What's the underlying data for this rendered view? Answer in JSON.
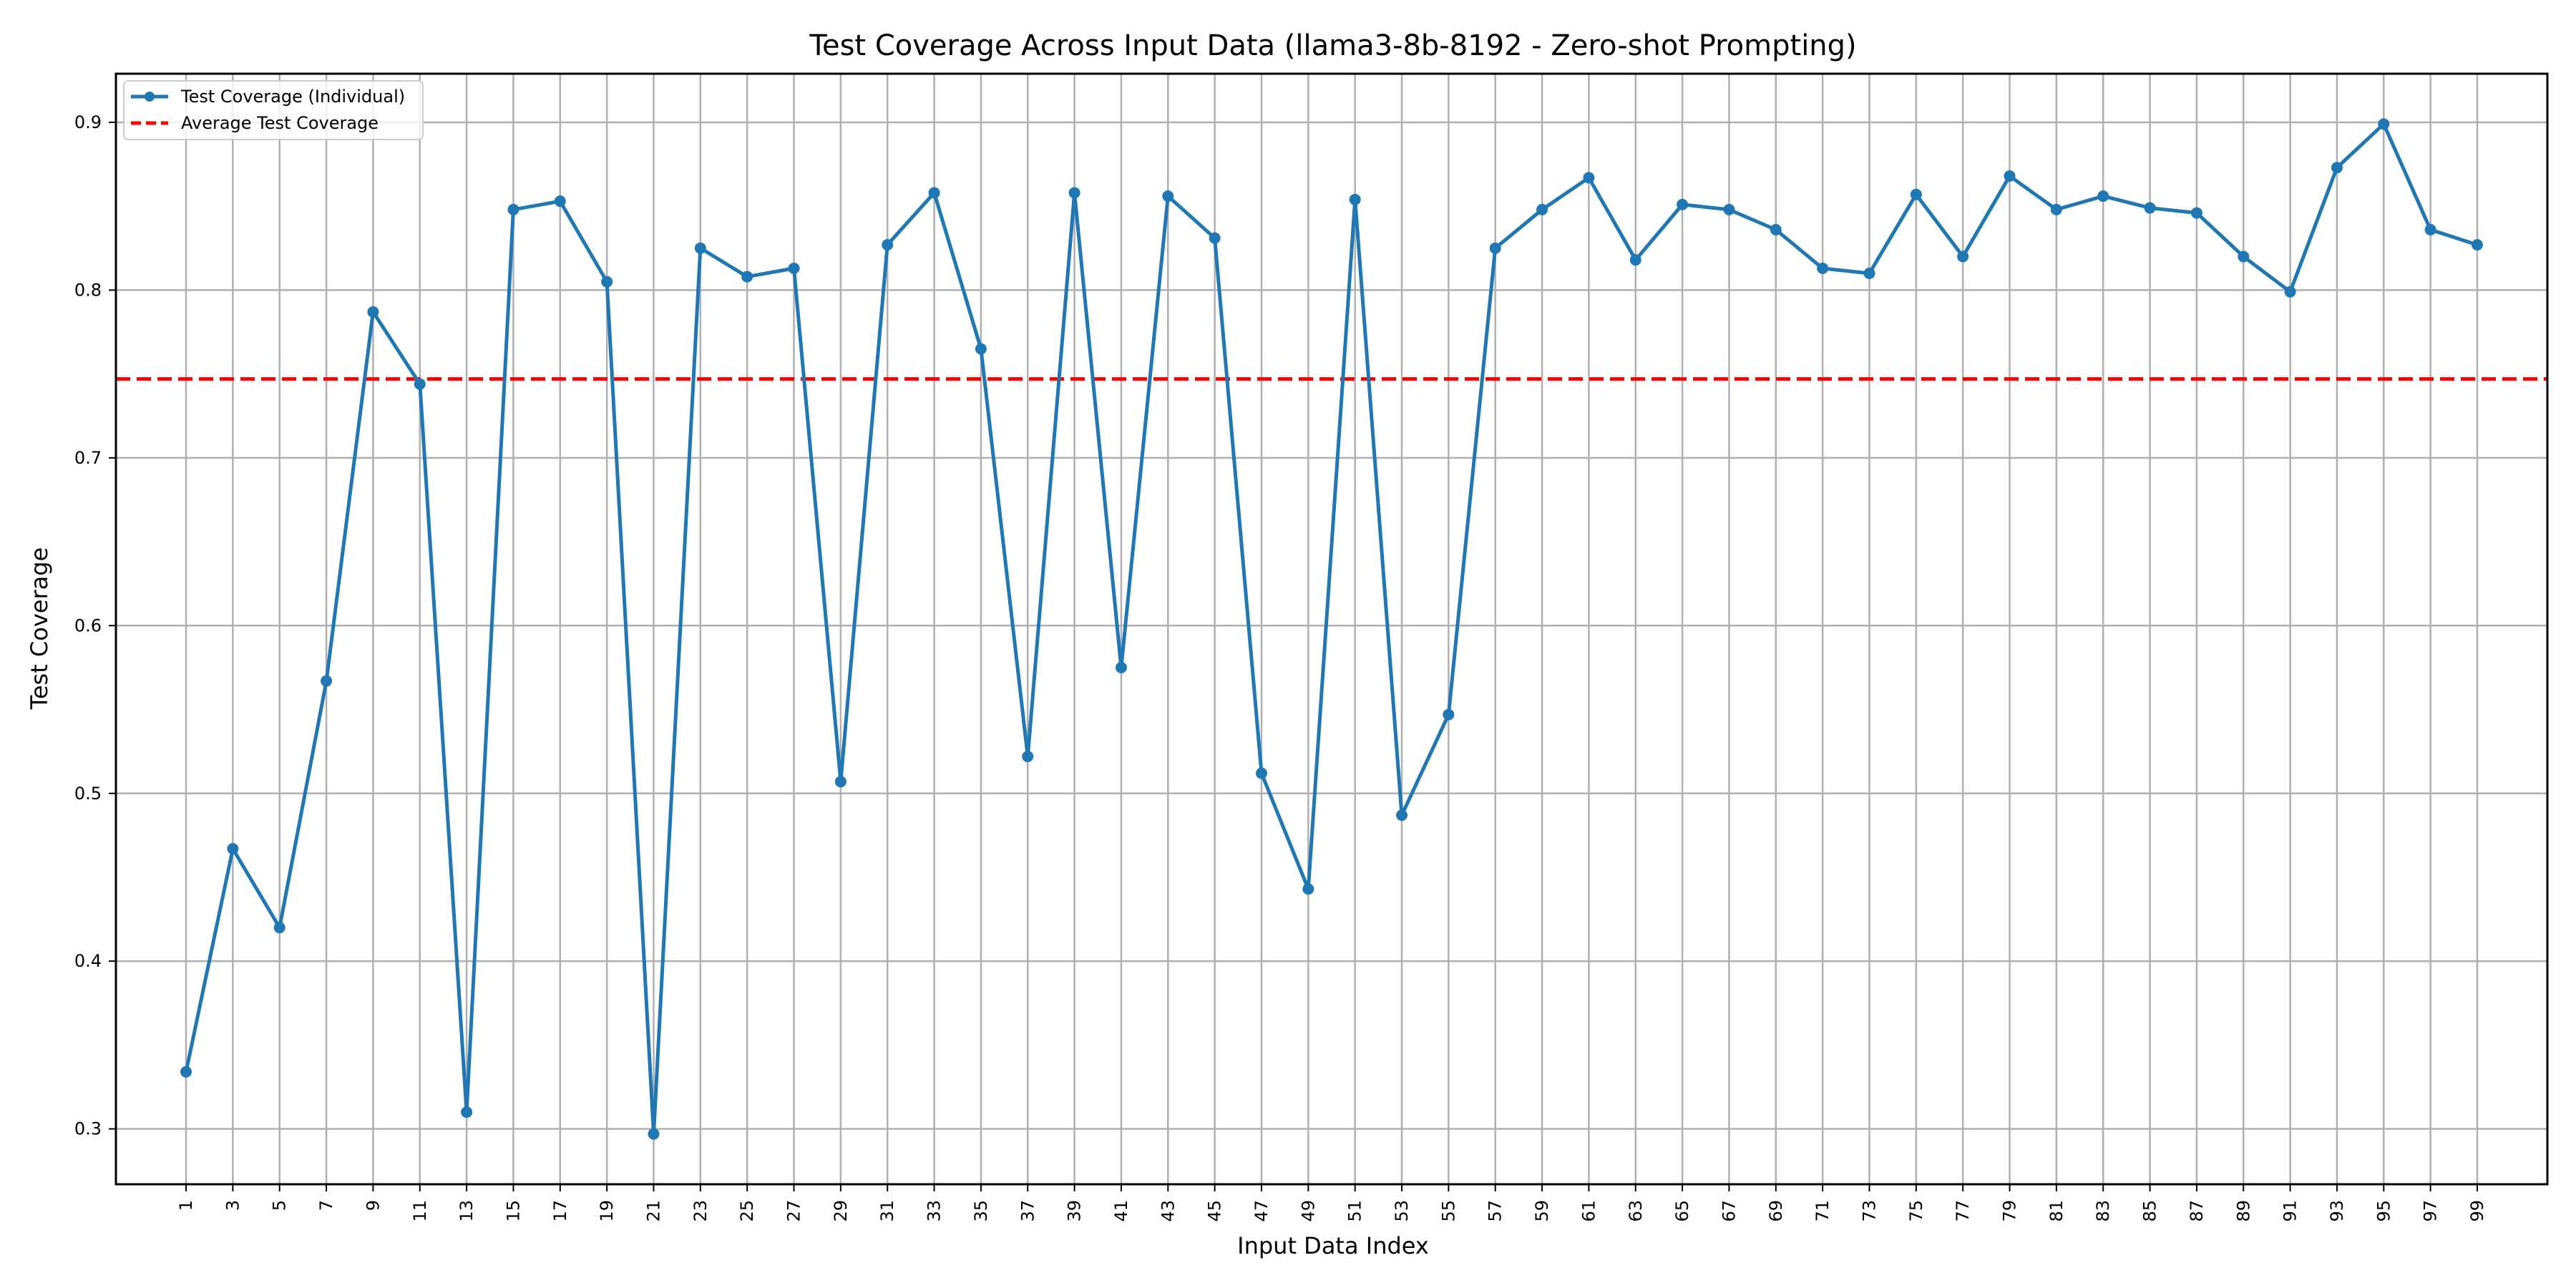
{
  "chart_data": {
    "type": "line",
    "title": "Test Coverage Across Input Data (llama3-8b-8192 - Zero-shot Prompting)",
    "xlabel": "Input Data Index",
    "ylabel": "Test Coverage",
    "xlim": [
      -2,
      102
    ],
    "ylim": [
      0.267,
      0.929
    ],
    "x_ticks": [
      1,
      3,
      5,
      7,
      9,
      11,
      13,
      15,
      17,
      19,
      21,
      23,
      25,
      27,
      29,
      31,
      33,
      35,
      37,
      39,
      41,
      43,
      45,
      47,
      49,
      51,
      53,
      55,
      57,
      59,
      61,
      63,
      65,
      67,
      69,
      71,
      73,
      75,
      77,
      79,
      81,
      83,
      85,
      87,
      89,
      91,
      93,
      95,
      97,
      99
    ],
    "y_ticks": [
      0.3,
      0.4,
      0.5,
      0.6,
      0.7,
      0.8,
      0.9
    ],
    "y_tick_labels": [
      "0.3",
      "0.4",
      "0.5",
      "0.6",
      "0.7",
      "0.8",
      "0.9"
    ],
    "grid": true,
    "legend_position": "upper-left",
    "series": [
      {
        "name": "Test Coverage (Individual)",
        "color": "#1f77b4",
        "style": "solid-with-markers",
        "x": [
          1,
          3,
          5,
          7,
          9,
          11,
          13,
          15,
          17,
          19,
          21,
          23,
          25,
          27,
          29,
          31,
          33,
          35,
          37,
          39,
          41,
          43,
          45,
          47,
          49,
          51,
          53,
          55,
          57,
          59,
          61,
          63,
          65,
          67,
          69,
          71,
          73,
          75,
          77,
          79,
          81,
          83,
          85,
          87,
          89,
          91,
          93,
          95,
          97,
          99
        ],
        "values": [
          0.334,
          0.467,
          0.42,
          0.567,
          0.787,
          0.744,
          0.31,
          0.848,
          0.853,
          0.805,
          0.297,
          0.825,
          0.808,
          0.813,
          0.507,
          0.827,
          0.858,
          0.765,
          0.522,
          0.858,
          0.575,
          0.856,
          0.831,
          0.512,
          0.443,
          0.854,
          0.487,
          0.547,
          0.825,
          0.848,
          0.867,
          0.818,
          0.851,
          0.848,
          0.836,
          0.813,
          0.81,
          0.857,
          0.82,
          0.868,
          0.848,
          0.856,
          0.849,
          0.846,
          0.82,
          0.799,
          0.873,
          0.899,
          0.836,
          0.827
        ]
      },
      {
        "name": "Average Test Coverage",
        "color": "#ff0000",
        "style": "dashed",
        "value": 0.747
      }
    ]
  }
}
